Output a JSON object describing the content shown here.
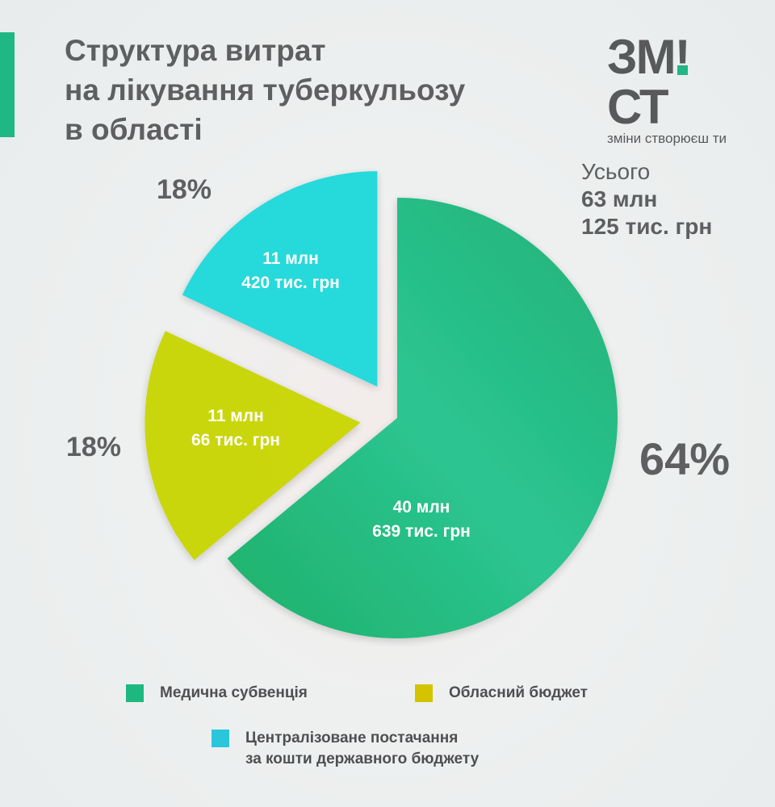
{
  "title_lines": [
    "Структура витрат",
    "на лікування туберкульозу",
    "в області"
  ],
  "logo": {
    "main_prefix": "ЗМ",
    "main_bang": "!",
    "main_suffix": "СТ",
    "tagline": "зміни створюєш ти"
  },
  "total": {
    "label": "Усього",
    "line1": "63 млн",
    "line2": "125 тис. грн"
  },
  "colors": {
    "accent": "#1fb784",
    "text": "#5e5f61"
  },
  "chart_data": {
    "type": "pie",
    "start": "top",
    "direction": "clockwise",
    "slices": [
      {
        "name": "Медична субвенція",
        "percent": 64,
        "percent_label": "64%",
        "value_line1": "40 млн",
        "value_line2": "639 тис. грн",
        "color": "#1db87f",
        "exploded": false
      },
      {
        "name": "Обласний бюджет",
        "percent": 18,
        "percent_label": "18%",
        "value_line1": "11 млн",
        "value_line2": "66 тис. грн",
        "color": "#c9d500",
        "exploded": true
      },
      {
        "name": "Централізоване постачання за кошти державного бюджету",
        "percent": 18,
        "percent_label": "18%",
        "value_line1": "11 млн",
        "value_line2": "420 тис. грн",
        "color": "#1ad8da",
        "exploded": true
      }
    ],
    "legend": [
      {
        "lines": [
          "Медична субвенція"
        ],
        "color": "#1db87f"
      },
      {
        "lines": [
          "Обласний бюджет"
        ],
        "color": "#d4c400"
      },
      {
        "lines": [
          "Централізоване постачання",
          "за кошти державного бюджету"
        ],
        "color": "#29c6dc"
      }
    ]
  }
}
